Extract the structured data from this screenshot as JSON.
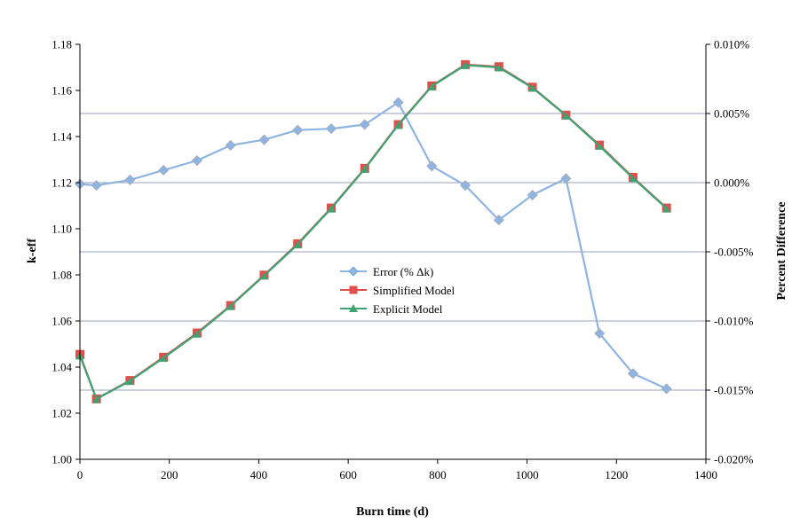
{
  "chart_data": {
    "type": "line",
    "title": "",
    "xlabel": "Burn time (d)",
    "ylabel": "k-eff",
    "y2label": "Percent Difference",
    "xlim": [
      0,
      1400
    ],
    "ylim": [
      1.0,
      1.18
    ],
    "y2lim": [
      -0.02,
      0.01
    ],
    "x_ticks": [
      "0",
      "200",
      "400",
      "600",
      "800",
      "1000",
      "1200",
      "1400"
    ],
    "y_ticks": [
      "1.00",
      "1.02",
      "1.04",
      "1.06",
      "1.08",
      "1.10",
      "1.12",
      "1.14",
      "1.16",
      "1.18"
    ],
    "y2_ticks": [
      "-0.020%",
      "-0.015%",
      "-0.010%",
      "-0.005%",
      "0.000%",
      "0.005%",
      "0.010%"
    ],
    "grid": "horizontal lines on secondary axis",
    "legend_position": "center",
    "series": [
      {
        "name": "Error (% Δk)",
        "axis": "secondary",
        "color": "#8db4e2",
        "marker": "diamond",
        "x": [
          0,
          37,
          112,
          187,
          262,
          337,
          412,
          487,
          562,
          637,
          712,
          787,
          862,
          937,
          1012,
          1087,
          1162,
          1237,
          1312
        ],
        "values": [
          -0.0001,
          -0.0002,
          0.0002,
          0.0009,
          0.0016,
          0.0027,
          0.0031,
          0.0038,
          0.0039,
          0.0042,
          0.0058,
          0.0012,
          -0.0002,
          -0.0027,
          -0.0009,
          0.0003,
          -0.0109,
          -0.0138,
          -0.0149
        ]
      },
      {
        "name": "Simplified Model",
        "axis": "primary",
        "color": "#e0504b",
        "marker": "square",
        "x": [
          0,
          37,
          112,
          187,
          262,
          337,
          412,
          487,
          562,
          637,
          712,
          787,
          862,
          937,
          1012,
          1087,
          1162,
          1237,
          1312
        ],
        "values": [
          1.0455,
          1.0262,
          1.0342,
          1.0443,
          1.0548,
          1.0667,
          1.0799,
          1.0935,
          1.109,
          1.1262,
          1.1452,
          1.162,
          1.1712,
          1.1703,
          1.1614,
          1.1493,
          1.1363,
          1.1223,
          1.109
        ]
      },
      {
        "name": "Explicit Model",
        "axis": "primary",
        "color": "#3ea272",
        "marker": "triangle",
        "x": [
          0,
          37,
          112,
          187,
          262,
          337,
          412,
          487,
          562,
          637,
          712,
          787,
          862,
          937,
          1012,
          1087,
          1162,
          1237,
          1312
        ],
        "values": [
          1.045,
          1.0262,
          1.034,
          1.044,
          1.0545,
          1.0665,
          1.0797,
          1.0932,
          1.1088,
          1.126,
          1.145,
          1.1618,
          1.171,
          1.17,
          1.1612,
          1.1492,
          1.136,
          1.122,
          1.1088
        ]
      }
    ]
  }
}
